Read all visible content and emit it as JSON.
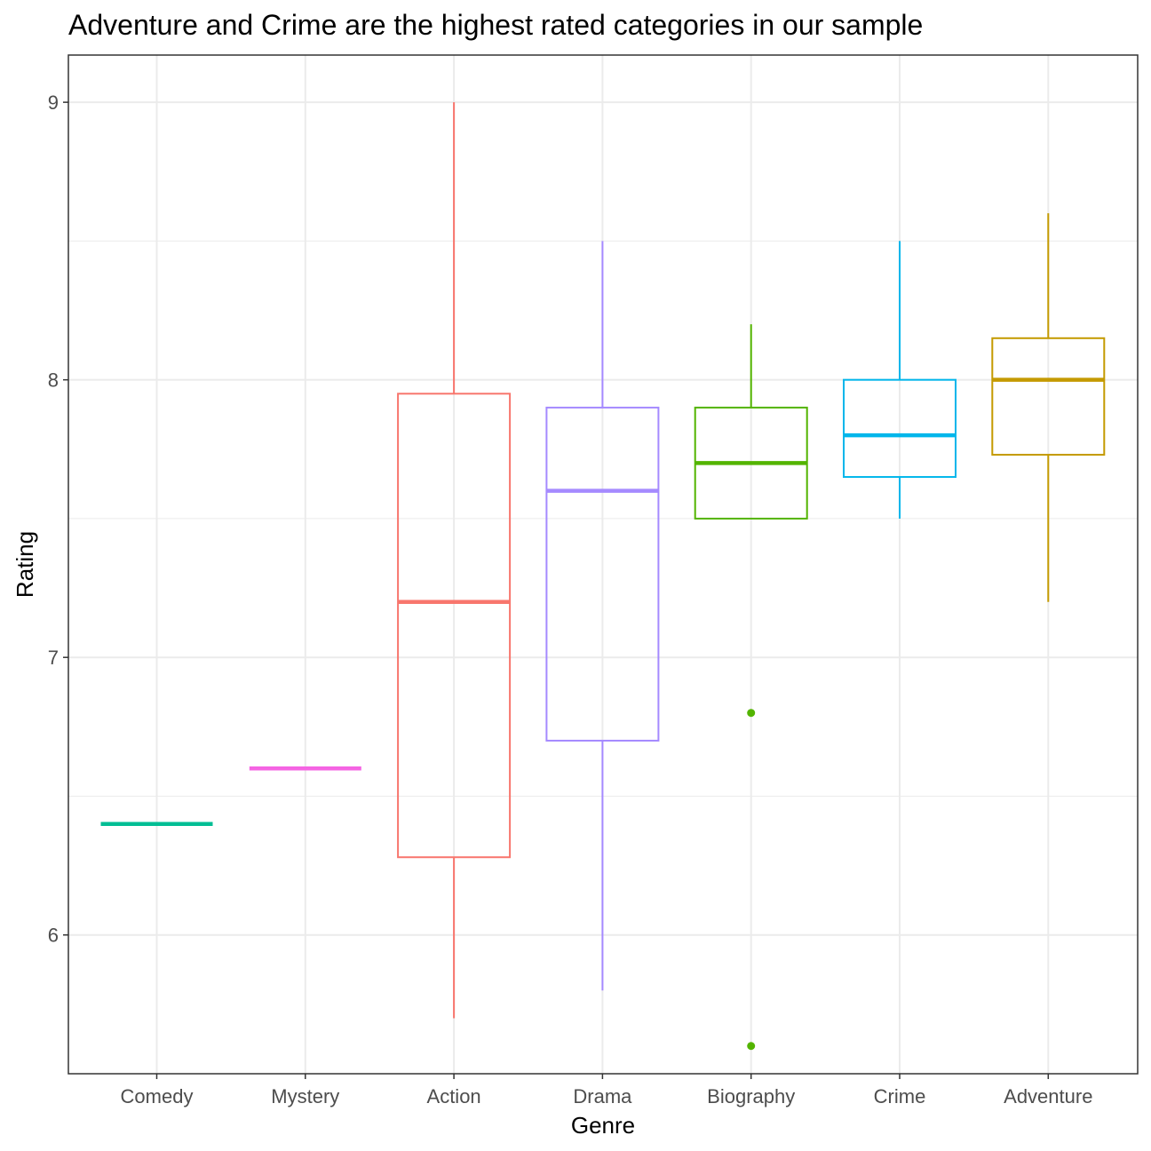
{
  "chart_data": {
    "type": "boxplot",
    "title": "Adventure and Crime are the highest rated categories in our sample",
    "xlabel": "Genre",
    "ylabel": "Rating",
    "ylim": [
      5.5,
      9.17
    ],
    "yticks": [
      6,
      7,
      8,
      9
    ],
    "grid": true,
    "legend": "none",
    "categories": [
      "Comedy",
      "Mystery",
      "Action",
      "Drama",
      "Biography",
      "Crime",
      "Adventure"
    ],
    "boxes": [
      {
        "name": "Comedy",
        "color": "#00BE94",
        "lower_whisker": 6.4,
        "q1": 6.4,
        "median": 6.4,
        "q3": 6.4,
        "upper_whisker": 6.4,
        "outliers": []
      },
      {
        "name": "Mystery",
        "color": "#F564E3",
        "lower_whisker": 6.6,
        "q1": 6.6,
        "median": 6.6,
        "q3": 6.6,
        "upper_whisker": 6.6,
        "outliers": []
      },
      {
        "name": "Action",
        "color": "#F8766D",
        "lower_whisker": 5.7,
        "q1": 6.28,
        "median": 7.2,
        "q3": 7.95,
        "upper_whisker": 9.0,
        "outliers": []
      },
      {
        "name": "Drama",
        "color": "#A58AFF",
        "lower_whisker": 5.8,
        "q1": 6.7,
        "median": 7.6,
        "q3": 7.9,
        "upper_whisker": 8.5,
        "outliers": []
      },
      {
        "name": "Biography",
        "color": "#53B400",
        "lower_whisker": 7.5,
        "q1": 7.5,
        "median": 7.7,
        "q3": 7.9,
        "upper_whisker": 8.2,
        "outliers": [
          6.8,
          5.6
        ]
      },
      {
        "name": "Crime",
        "color": "#00B6EB",
        "lower_whisker": 7.5,
        "q1": 7.65,
        "median": 7.8,
        "q3": 8.0,
        "upper_whisker": 8.5,
        "outliers": []
      },
      {
        "name": "Adventure",
        "color": "#C49A00",
        "lower_whisker": 7.2,
        "q1": 7.73,
        "median": 8.0,
        "q3": 8.15,
        "upper_whisker": 8.6,
        "outliers": []
      }
    ]
  },
  "style": {
    "grid_color": "#ebebeb",
    "panel_border_color": "#333333",
    "text_color": "#4d4d4d"
  }
}
